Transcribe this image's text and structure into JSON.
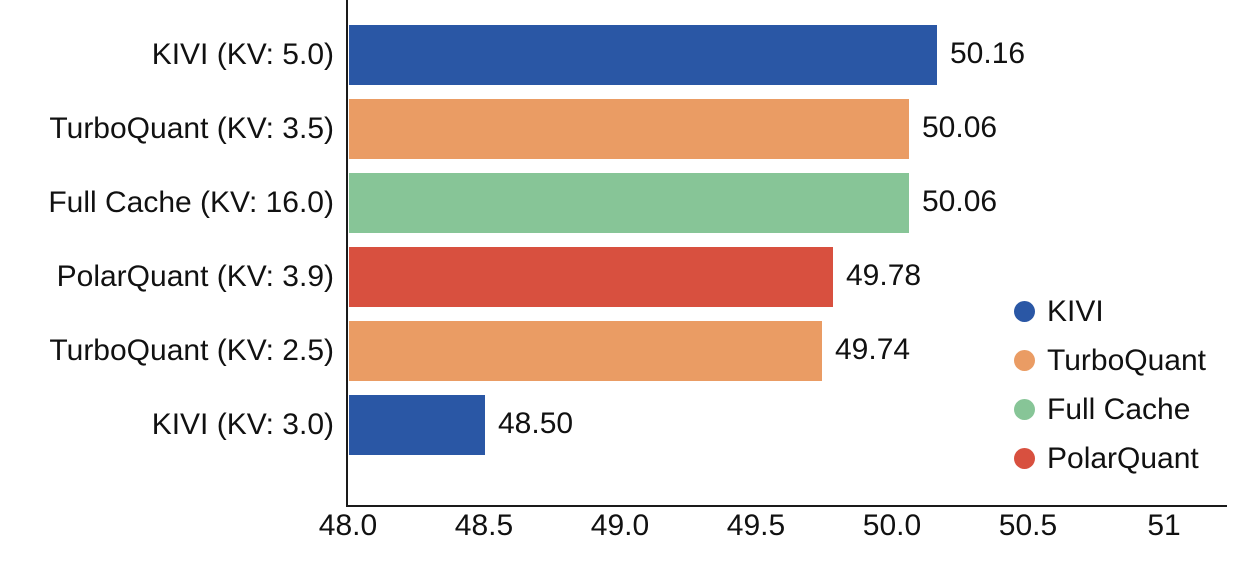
{
  "chart_data": {
    "type": "bar",
    "orientation": "horizontal",
    "title": "",
    "xlabel": "",
    "ylabel": "",
    "grid": false,
    "categories": [
      "KIVI (KV: 5.0)",
      "TurboQuant (KV: 3.5)",
      "Full Cache (KV: 16.0)",
      "PolarQuant (KV: 3.9)",
      "TurboQuant (KV: 2.5)",
      "KIVI (KV: 3.0)"
    ],
    "values": [
      50.16,
      50.06,
      50.06,
      49.78,
      49.74,
      48.5
    ],
    "value_labels": [
      "50.16",
      "50.06",
      "50.06",
      "49.78",
      "49.74",
      "48.50"
    ],
    "bar_series": [
      "KIVI",
      "TurboQuant",
      "Full Cache",
      "PolarQuant",
      "TurboQuant",
      "KIVI"
    ],
    "bar_colors": [
      "#2A57A5",
      "#EA9C64",
      "#87C597",
      "#D8503F",
      "#EA9C64",
      "#2A57A5"
    ],
    "xlim": [
      48.0,
      51.23
    ],
    "x_ticks": [
      {
        "value": 48.0,
        "label": "48.0"
      },
      {
        "value": 48.5,
        "label": "48.5"
      },
      {
        "value": 49.0,
        "label": "49.0"
      },
      {
        "value": 49.5,
        "label": "49.5"
      },
      {
        "value": 50.0,
        "label": "50.0"
      },
      {
        "value": 50.5,
        "label": "50.5"
      },
      {
        "value": 51.0,
        "label": "51"
      }
    ],
    "legend_position": "right-bottom",
    "legend": [
      {
        "label": "KIVI",
        "color": "#2A57A5"
      },
      {
        "label": "TurboQuant",
        "color": "#EA9C64"
      },
      {
        "label": "Full Cache",
        "color": "#87C597"
      },
      {
        "label": "PolarQuant",
        "color": "#D8503F"
      }
    ],
    "colors": {
      "axis": "#1a1a1a",
      "text": "#111111",
      "background": "#ffffff"
    }
  }
}
